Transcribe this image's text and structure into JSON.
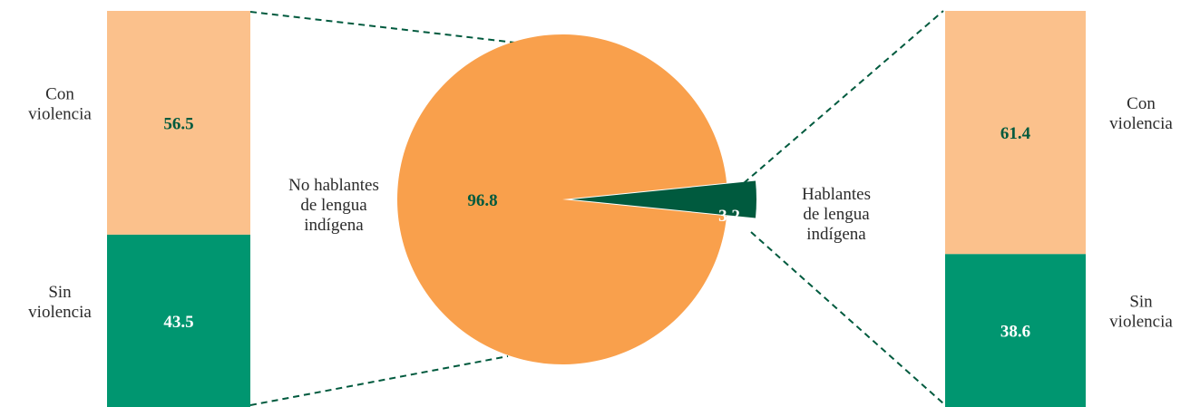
{
  "chart_data": {
    "type": "pie",
    "pie": {
      "slices": [
        {
          "name": "No hablantes de lengua indígena",
          "label_lines": [
            "No hablantes",
            "de lengua",
            "indígena"
          ],
          "value": 96.8,
          "value_text": "96.8",
          "color": "#F9A04C",
          "value_color": "#005A3E"
        },
        {
          "name": "Hablantes de lengua indígena",
          "label_lines": [
            "Hablantes",
            "de lengua",
            "indígena"
          ],
          "value": 3.2,
          "value_text": "3.2",
          "color": "#005A3E",
          "value_color": "#FFFFFF"
        }
      ]
    },
    "bars": [
      {
        "for_slice": "No hablantes de lengua indígena",
        "segments": [
          {
            "label_lines": [
              "Con",
              "violencia"
            ],
            "value": 56.5,
            "value_text": "56.5",
            "color": "#FBC18C",
            "value_color": "#005A3E"
          },
          {
            "label_lines": [
              "Sin",
              "violencia"
            ],
            "value": 43.5,
            "value_text": "43.5",
            "color": "#009670",
            "value_color": "#FFFFFF"
          }
        ]
      },
      {
        "for_slice": "Hablantes de lengua indígena",
        "segments": [
          {
            "label_lines": [
              "Con",
              "violencia"
            ],
            "value": 61.4,
            "value_text": "61.4",
            "color": "#FBC18C",
            "value_color": "#005A3E"
          },
          {
            "label_lines": [
              "Sin",
              "violencia"
            ],
            "value": 38.6,
            "value_text": "38.6",
            "color": "#009670",
            "value_color": "#FFFFFF"
          }
        ]
      }
    ],
    "connector_color": "#005A3E"
  }
}
